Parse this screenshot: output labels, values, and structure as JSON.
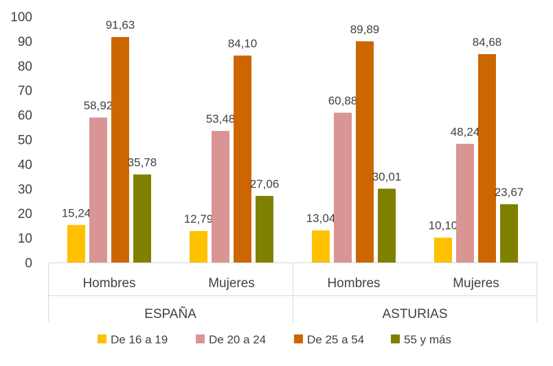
{
  "chart_data": {
    "type": "bar",
    "groups": [
      {
        "label": "ESPAÑA",
        "categories": [
          "Hombres",
          "Mujeres"
        ]
      },
      {
        "label": "ASTURIAS",
        "categories": [
          "Hombres",
          "Mujeres"
        ]
      }
    ],
    "categories": [
      "Hombres",
      "Mujeres",
      "Hombres",
      "Mujeres"
    ],
    "series": [
      {
        "name": "De 16 a 19",
        "color": "#FFC000",
        "values": [
          15.24,
          12.79,
          13.04,
          10.1
        ],
        "labels": [
          "15,24",
          "12,79",
          "13,04",
          "10,10"
        ]
      },
      {
        "name": "De 20 a 24",
        "color": "#D99594",
        "values": [
          58.92,
          53.48,
          60.88,
          48.24
        ],
        "labels": [
          "58,92",
          "53,48",
          "60,88",
          "48,24"
        ]
      },
      {
        "name": "De 25 a 54",
        "color": "#CC6600",
        "values": [
          91.63,
          84.1,
          89.89,
          84.68
        ],
        "labels": [
          "91,63",
          "84,10",
          "89,89",
          "84,68"
        ]
      },
      {
        "name": "55 y más",
        "color": "#808000",
        "values": [
          35.78,
          27.06,
          30.01,
          23.67
        ],
        "labels": [
          "35,78",
          "27,06",
          "30,01",
          "23,67"
        ]
      }
    ],
    "ylim": [
      0,
      100
    ],
    "yticks": [
      0,
      10,
      20,
      30,
      40,
      50,
      60,
      70,
      80,
      90,
      100
    ],
    "grid": false,
    "legend_position": "bottom"
  }
}
